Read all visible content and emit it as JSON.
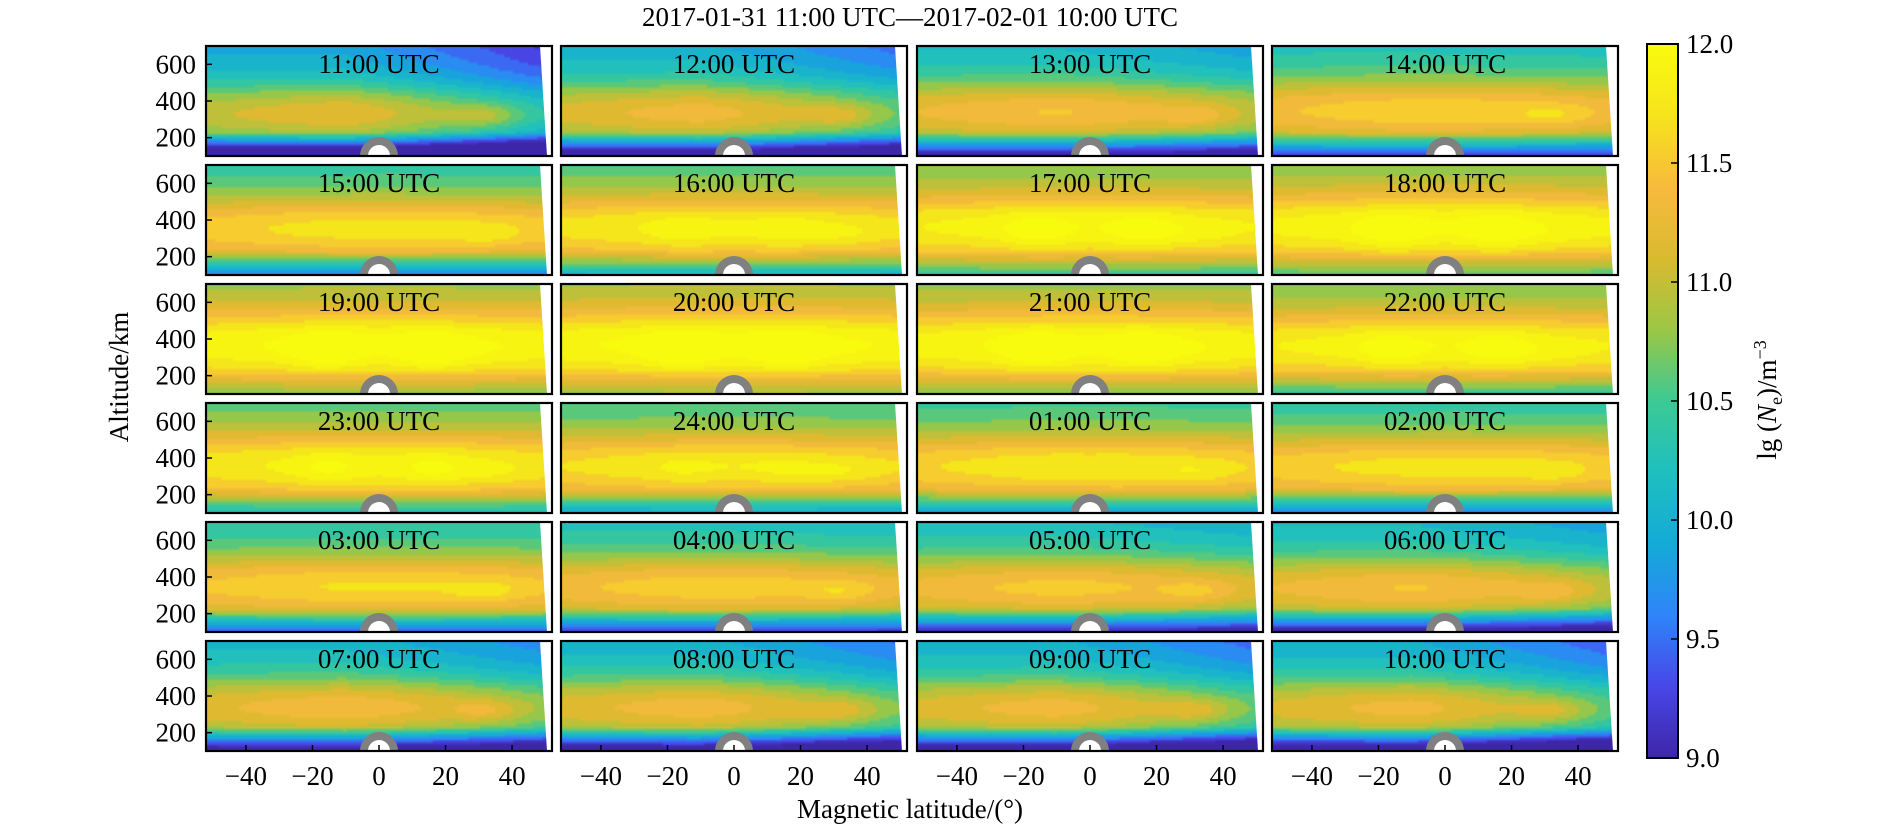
{
  "chart_data": {
    "type": "heatmap",
    "title": "2017-01-31 11:00 UTC—2017-02-01 10:00 UTC",
    "xlabel": "Magnetic latitude/(°)",
    "ylabel": "Altitude/km",
    "xlim": [
      -52,
      52
    ],
    "ylim": [
      100,
      700
    ],
    "x_ticks": [
      -40,
      -20,
      0,
      20,
      40
    ],
    "y_ticks": [
      200,
      400,
      600
    ],
    "colorbar": {
      "label_prefix": "lg (",
      "label_var": "N",
      "label_sub": "e",
      "label_mid": ")/m",
      "label_sup": "−3",
      "range": [
        9.0,
        12.0
      ],
      "ticks": [
        "12.0",
        "11.5",
        "11.0",
        "10.5",
        "10.0",
        "9.5",
        "9.0"
      ],
      "colormap": [
        "#3e26a8",
        "#4847e8",
        "#2f85fa",
        "#14aad6",
        "#1fbfbf",
        "#3cc994",
        "#9bc745",
        "#d9ba2f",
        "#f7ba3c",
        "#f5e41c",
        "#f9fb0e"
      ]
    },
    "panels": [
      {
        "label": "11:00 UTC",
        "dawn": 0.0
      },
      {
        "label": "12:00 UTC",
        "dawn": 0.12
      },
      {
        "label": "13:00 UTC",
        "dawn": 0.24
      },
      {
        "label": "14:00 UTC",
        "dawn": 0.38
      },
      {
        "label": "15:00 UTC",
        "dawn": 0.52
      },
      {
        "label": "16:00 UTC",
        "dawn": 0.68
      },
      {
        "label": "17:00 UTC",
        "dawn": 0.8
      },
      {
        "label": "18:00 UTC",
        "dawn": 0.85
      },
      {
        "label": "19:00 UTC",
        "dawn": 0.92
      },
      {
        "label": "20:00 UTC",
        "dawn": 0.95
      },
      {
        "label": "21:00 UTC",
        "dawn": 0.9
      },
      {
        "label": "22:00 UTC",
        "dawn": 0.8
      },
      {
        "label": "23:00 UTC",
        "dawn": 0.72
      },
      {
        "label": "24:00 UTC",
        "dawn": 0.62
      },
      {
        "label": "01:00 UTC",
        "dawn": 0.58
      },
      {
        "label": "02:00 UTC",
        "dawn": 0.52
      },
      {
        "label": "03:00 UTC",
        "dawn": 0.45
      },
      {
        "label": "04:00 UTC",
        "dawn": 0.36
      },
      {
        "label": "05:00 UTC",
        "dawn": 0.3
      },
      {
        "label": "06:00 UTC",
        "dawn": 0.24
      },
      {
        "label": "07:00 UTC",
        "dawn": 0.18
      },
      {
        "label": "08:00 UTC",
        "dawn": 0.14
      },
      {
        "label": "09:00 UTC",
        "dawn": 0.12
      },
      {
        "label": "10:00 UTC",
        "dawn": 0.1
      }
    ]
  }
}
